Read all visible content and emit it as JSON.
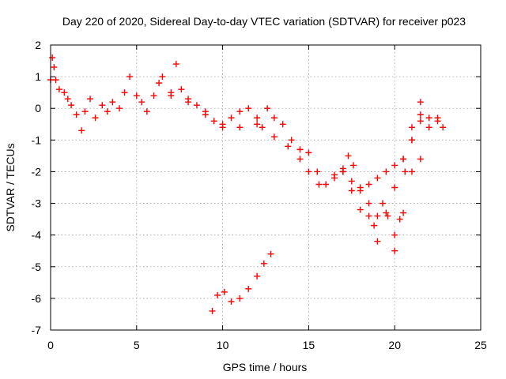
{
  "chart_data": {
    "type": "scatter",
    "title": "Day 220 of 2020, Sidereal Day-to-day VTEC variation (SDTVAR) for receiver p023",
    "xlabel": "GPS time / hours",
    "ylabel": "SDTVAR / TECUs",
    "xlim": [
      0,
      25
    ],
    "ylim": [
      -7,
      2
    ],
    "xticks": [
      0,
      5,
      10,
      15,
      20,
      25
    ],
    "yticks": [
      -7,
      -6,
      -5,
      -4,
      -3,
      -2,
      -1,
      0,
      1,
      2
    ],
    "grid": true,
    "marker": "+",
    "color": "#ff0000",
    "series": [
      {
        "name": "SDTVAR",
        "values": [
          {
            "x": 0.0,
            "y": 0.9
          },
          {
            "x": 0.1,
            "y": 1.6
          },
          {
            "x": 0.2,
            "y": 1.3
          },
          {
            "x": 0.3,
            "y": 0.9
          },
          {
            "x": 0.5,
            "y": 0.6
          },
          {
            "x": 0.8,
            "y": 0.5
          },
          {
            "x": 1.0,
            "y": 0.3
          },
          {
            "x": 1.2,
            "y": 0.1
          },
          {
            "x": 1.5,
            "y": -0.2
          },
          {
            "x": 1.8,
            "y": -0.7
          },
          {
            "x": 2.0,
            "y": -0.1
          },
          {
            "x": 2.3,
            "y": 0.3
          },
          {
            "x": 2.6,
            "y": -0.3
          },
          {
            "x": 3.0,
            "y": 0.1
          },
          {
            "x": 3.3,
            "y": -0.1
          },
          {
            "x": 3.6,
            "y": 0.2
          },
          {
            "x": 4.0,
            "y": 0.0
          },
          {
            "x": 4.3,
            "y": 0.5
          },
          {
            "x": 4.6,
            "y": 1.0
          },
          {
            "x": 5.0,
            "y": 0.4
          },
          {
            "x": 5.3,
            "y": 0.2
          },
          {
            "x": 5.6,
            "y": -0.1
          },
          {
            "x": 6.0,
            "y": 0.4
          },
          {
            "x": 6.5,
            "y": 1.0
          },
          {
            "x": 7.0,
            "y": 0.5
          },
          {
            "x": 7.3,
            "y": 1.4
          },
          {
            "x": 7.6,
            "y": 0.6
          },
          {
            "x": 8.0,
            "y": 0.3
          },
          {
            "x": 8.5,
            "y": 0.1
          },
          {
            "x": 9.0,
            "y": -0.1
          },
          {
            "x": 9.5,
            "y": -0.4
          },
          {
            "x": 10.0,
            "y": -0.5
          },
          {
            "x": 10.5,
            "y": -0.3
          },
          {
            "x": 11.0,
            "y": -0.1
          },
          {
            "x": 11.5,
            "y": 0.0
          },
          {
            "x": 12.0,
            "y": -0.3
          },
          {
            "x": 12.3,
            "y": -0.6
          },
          {
            "x": 12.6,
            "y": 0.0
          },
          {
            "x": 13.0,
            "y": -0.3
          },
          {
            "x": 13.5,
            "y": -0.5
          },
          {
            "x": 14.0,
            "y": -1.0
          },
          {
            "x": 14.5,
            "y": -1.3
          },
          {
            "x": 15.0,
            "y": -1.4
          },
          {
            "x": 15.5,
            "y": -2.0
          },
          {
            "x": 16.0,
            "y": -2.4
          },
          {
            "x": 16.5,
            "y": -2.2
          },
          {
            "x": 17.0,
            "y": -2.0
          },
          {
            "x": 17.3,
            "y": -1.5
          },
          {
            "x": 17.6,
            "y": -1.8
          },
          {
            "x": 18.0,
            "y": -2.6
          },
          {
            "x": 18.5,
            "y": -3.0
          },
          {
            "x": 18.8,
            "y": -3.7
          },
          {
            "x": 19.0,
            "y": -4.2
          },
          {
            "x": 19.3,
            "y": -3.0
          },
          {
            "x": 19.6,
            "y": -3.4
          },
          {
            "x": 20.0,
            "y": -4.0
          },
          {
            "x": 20.3,
            "y": -3.5
          },
          {
            "x": 20.6,
            "y": -2.0
          },
          {
            "x": 21.0,
            "y": -1.0
          },
          {
            "x": 21.5,
            "y": -0.2
          },
          {
            "x": 22.0,
            "y": -0.3
          },
          {
            "x": 22.5,
            "y": -0.4
          },
          {
            "x": 22.8,
            "y": -0.6
          },
          {
            "x": 6.3,
            "y": 0.8
          },
          {
            "x": 7.0,
            "y": 0.4
          },
          {
            "x": 8.0,
            "y": 0.2
          },
          {
            "x": 9.0,
            "y": -0.2
          },
          {
            "x": 10.0,
            "y": -0.6
          },
          {
            "x": 11.0,
            "y": -0.6
          },
          {
            "x": 12.0,
            "y": -0.5
          },
          {
            "x": 13.0,
            "y": -0.9
          },
          {
            "x": 13.8,
            "y": -1.2
          },
          {
            "x": 14.5,
            "y": -1.6
          },
          {
            "x": 15.0,
            "y": -2.0
          },
          {
            "x": 15.6,
            "y": -2.4
          },
          {
            "x": 16.5,
            "y": -2.1
          },
          {
            "x": 17.0,
            "y": -1.9
          },
          {
            "x": 17.5,
            "y": -2.3
          },
          {
            "x": 18.0,
            "y": -2.5
          },
          {
            "x": 18.5,
            "y": -2.4
          },
          {
            "x": 19.0,
            "y": -2.2
          },
          {
            "x": 19.5,
            "y": -2.0
          },
          {
            "x": 20.0,
            "y": -1.8
          },
          {
            "x": 20.5,
            "y": -1.6
          },
          {
            "x": 21.0,
            "y": -1.0
          },
          {
            "x": 21.5,
            "y": -0.4
          },
          {
            "x": 22.0,
            "y": -0.6
          },
          {
            "x": 22.5,
            "y": -0.3
          },
          {
            "x": 17.0,
            "y": -2.0
          },
          {
            "x": 17.5,
            "y": -2.6
          },
          {
            "x": 18.0,
            "y": -3.2
          },
          {
            "x": 18.5,
            "y": -3.4
          },
          {
            "x": 19.0,
            "y": -3.4
          },
          {
            "x": 19.5,
            "y": -3.3
          },
          {
            "x": 20.0,
            "y": -2.5
          },
          {
            "x": 20.5,
            "y": -1.6
          },
          {
            "x": 21.0,
            "y": -0.6
          },
          {
            "x": 21.5,
            "y": 0.2
          },
          {
            "x": 20.0,
            "y": -4.5
          },
          {
            "x": 20.5,
            "y": -3.3
          },
          {
            "x": 21.0,
            "y": -2.0
          },
          {
            "x": 21.5,
            "y": -1.6
          },
          {
            "x": 9.4,
            "y": -6.4
          },
          {
            "x": 9.7,
            "y": -5.9
          },
          {
            "x": 10.1,
            "y": -5.8
          },
          {
            "x": 10.5,
            "y": -6.1
          },
          {
            "x": 11.0,
            "y": -6.0
          },
          {
            "x": 11.5,
            "y": -5.7
          },
          {
            "x": 12.0,
            "y": -5.3
          },
          {
            "x": 12.4,
            "y": -4.9
          },
          {
            "x": 12.8,
            "y": -4.6
          }
        ]
      }
    ]
  }
}
